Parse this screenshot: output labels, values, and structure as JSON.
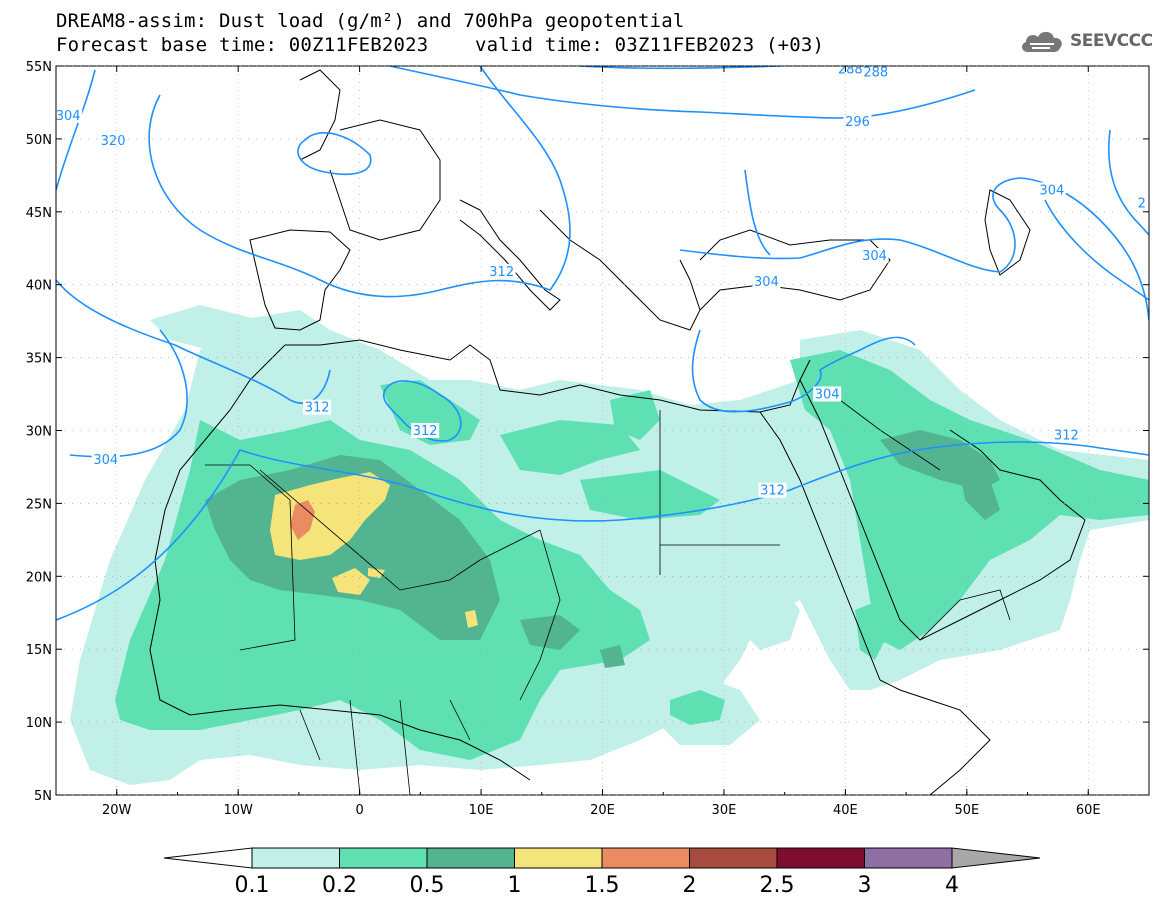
{
  "title": {
    "line1": "DREAM8-assim: Dust load (g/m²) and 700hPa geopotential",
    "line2": "Forecast base time: 00Z11FEB2023    valid time: 03Z11FEB2023 (+03)"
  },
  "logo": {
    "text": "SEEVCCC",
    "icon": "cloud-icon"
  },
  "map": {
    "lon_range": [
      -25,
      65
    ],
    "lat_range": [
      5,
      55
    ],
    "lon_ticks": [
      {
        "value": -20,
        "label": "20W"
      },
      {
        "value": -10,
        "label": "10W"
      },
      {
        "value": 0,
        "label": "0"
      },
      {
        "value": 10,
        "label": "10E"
      },
      {
        "value": 20,
        "label": "20E"
      },
      {
        "value": 30,
        "label": "30E"
      },
      {
        "value": 40,
        "label": "40E"
      },
      {
        "value": 50,
        "label": "50E"
      },
      {
        "value": 60,
        "label": "60E"
      }
    ],
    "lat_ticks": [
      {
        "value": 55,
        "label": "55N"
      },
      {
        "value": 50,
        "label": "50N"
      },
      {
        "value": 45,
        "label": "45N"
      },
      {
        "value": 40,
        "label": "40N"
      },
      {
        "value": 35,
        "label": "35N"
      },
      {
        "value": 30,
        "label": "30N"
      },
      {
        "value": 25,
        "label": "25N"
      },
      {
        "value": 20,
        "label": "20N"
      },
      {
        "value": 15,
        "label": "15N"
      },
      {
        "value": 10,
        "label": "10N"
      },
      {
        "value": 5,
        "label": "5N"
      }
    ],
    "contour_color": "#1e90ff",
    "contour_labels": [
      {
        "text": "304",
        "lon": -24.0,
        "lat": 51.5
      },
      {
        "text": "320",
        "lon": -20.3,
        "lat": 49.8
      },
      {
        "text": "312",
        "lon": 11.7,
        "lat": 40.8
      },
      {
        "text": "312",
        "lon": -3.5,
        "lat": 31.5
      },
      {
        "text": "312",
        "lon": 5.4,
        "lat": 29.9
      },
      {
        "text": "304",
        "lon": -20.9,
        "lat": 27.9
      },
      {
        "text": "288",
        "lon": 40.4,
        "lat": 54.7
      },
      {
        "text": "288",
        "lon": 42.5,
        "lat": 54.5
      },
      {
        "text": "296",
        "lon": 41.0,
        "lat": 51.1
      },
      {
        "text": "304",
        "lon": 57.0,
        "lat": 46.4
      },
      {
        "text": "304",
        "lon": 42.4,
        "lat": 41.9
      },
      {
        "text": "304",
        "lon": 33.5,
        "lat": 40.1
      },
      {
        "text": "304",
        "lon": 38.5,
        "lat": 32.4
      },
      {
        "text": "312",
        "lon": 58.2,
        "lat": 29.6
      },
      {
        "text": "312",
        "lon": 34.0,
        "lat": 25.8
      },
      {
        "text": "2",
        "lon": 64.4,
        "lat": 45.5
      }
    ]
  },
  "colorbar": {
    "labels": [
      "0.1",
      "0.2",
      "0.5",
      "1",
      "1.5",
      "2",
      "2.5",
      "3",
      "4"
    ],
    "colors": [
      "#c0f0e8",
      "#5fe0b3",
      "#52b491",
      "#f5e47a",
      "#eb8b62",
      "#a84b3f",
      "#7e0e2e",
      "#8f6ea3"
    ],
    "under_color": "#ffffff",
    "over_color": "#a8a8a8"
  },
  "dust_levels": {
    "c1": "#c0f0e8",
    "c2": "#5fe0b3",
    "c3": "#52b491",
    "c4": "#f5e47a",
    "c5": "#eb8b62"
  }
}
